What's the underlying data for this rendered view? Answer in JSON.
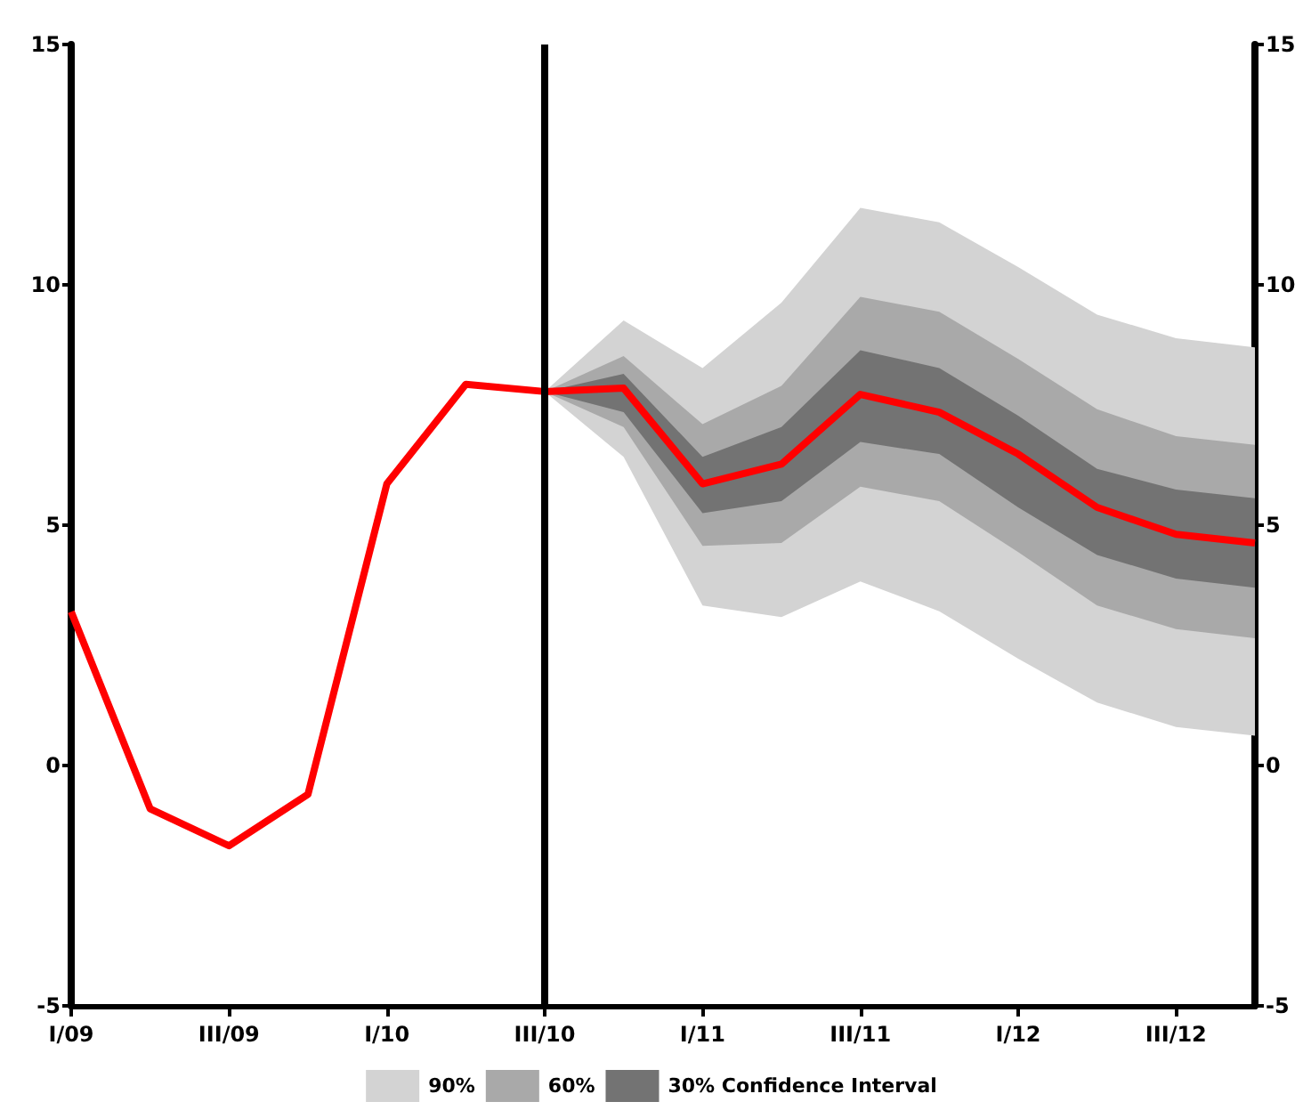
{
  "chart_data": {
    "type": "line",
    "categories": [
      "I/09",
      null,
      "III/09",
      null,
      "I/10",
      null,
      "III/10",
      null,
      "I/11",
      null,
      "III/11",
      null,
      "I/12",
      null,
      "III/12",
      null
    ],
    "series": [
      {
        "name": "90%",
        "type": "line",
        "color": "#d3d3d3",
        "values": [
          null,
          null,
          null,
          null,
          null,
          null,
          null,
          null,
          null,
          null,
          null,
          null,
          null,
          null,
          null,
          null
        ],
        "lower": [
          null,
          null,
          null,
          null,
          null,
          null,
          7.78,
          6.42,
          3.33,
          3.09,
          3.83,
          3.21,
          2.22,
          1.31,
          0.8,
          0.62
        ],
        "upper": [
          null,
          null,
          null,
          null,
          null,
          null,
          7.78,
          9.26,
          8.27,
          9.63,
          11.6,
          11.3,
          10.37,
          9.38,
          8.89,
          8.7
        ]
      },
      {
        "name": "60%",
        "type": "line",
        "color": "#a9a9a9",
        "values": [
          null,
          null,
          null,
          null,
          null,
          null,
          null,
          null,
          null,
          null,
          null,
          null,
          null,
          null,
          null,
          null
        ],
        "lower": [
          null,
          null,
          null,
          null,
          null,
          null,
          7.78,
          7.04,
          4.57,
          4.63,
          5.8,
          5.5,
          4.44,
          3.33,
          2.84,
          2.65
        ],
        "upper": [
          null,
          null,
          null,
          null,
          null,
          null,
          7.78,
          8.52,
          7.1,
          7.9,
          9.75,
          9.44,
          8.46,
          7.41,
          6.85,
          6.67
        ]
      },
      {
        "name": "30% Confidence Interval",
        "type": "line",
        "color": "#737373",
        "values": [
          null,
          null,
          null,
          null,
          null,
          null,
          null,
          null,
          null,
          null,
          null,
          null,
          null,
          null,
          null,
          null
        ],
        "lower": [
          null,
          null,
          null,
          null,
          null,
          null,
          7.78,
          7.35,
          5.25,
          5.5,
          6.73,
          6.48,
          5.37,
          4.38,
          3.89,
          3.7
        ],
        "upper": [
          null,
          null,
          null,
          null,
          null,
          null,
          7.78,
          8.15,
          6.42,
          7.04,
          8.64,
          8.27,
          7.28,
          6.17,
          5.74,
          5.56
        ]
      },
      {
        "type": "line",
        "color": "#ff0000",
        "values": [
          3.2,
          -0.9,
          -1.67,
          -0.6,
          5.86,
          7.93,
          7.78,
          7.85,
          5.86,
          6.27,
          7.72,
          7.35,
          6.48,
          5.37,
          4.81,
          4.63
        ]
      }
    ],
    "ylim": [
      -5,
      15
    ],
    "yticks": [
      -5,
      0,
      5,
      10,
      15
    ],
    "y2lim": [
      -5,
      15
    ],
    "y2ticks": [
      -5,
      0,
      5,
      10,
      15
    ],
    "ref_lines": [
      {
        "axis": "x",
        "value": "III/10",
        "color": "#000000"
      }
    ],
    "grid": false,
    "legend": "bottom",
    "marker": "none",
    "line_style": "solid"
  }
}
